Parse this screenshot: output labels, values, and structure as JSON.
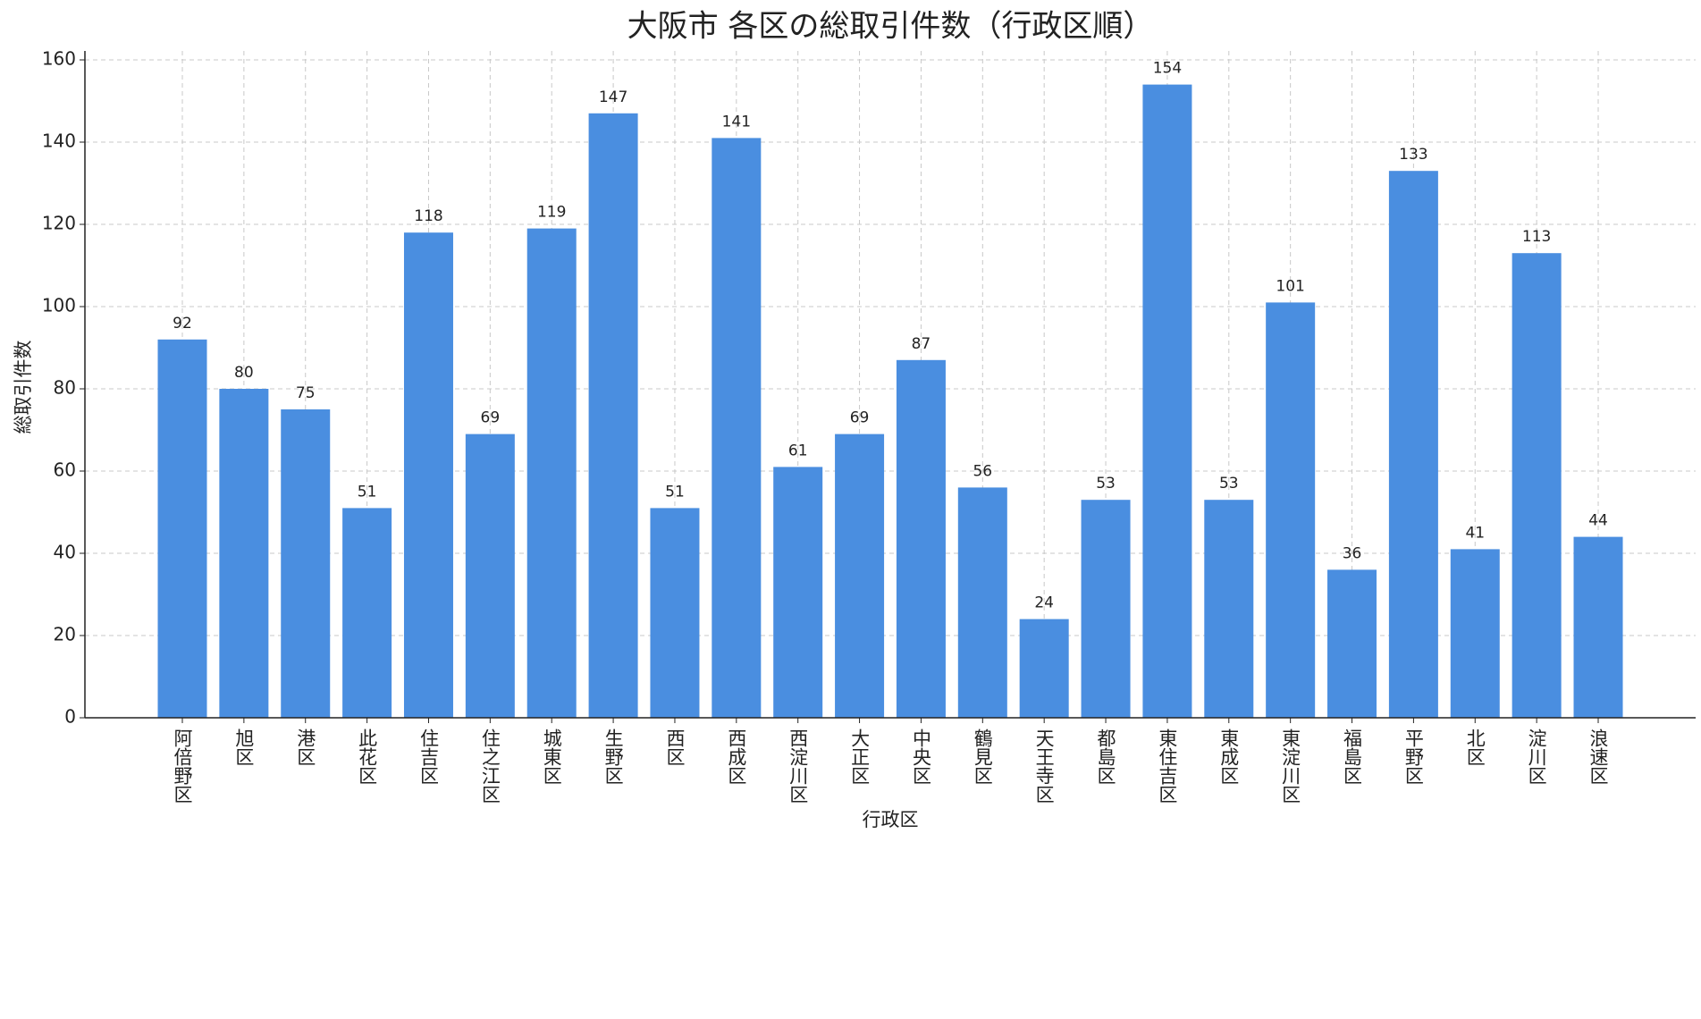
{
  "chart_data": {
    "type": "bar",
    "title": "大阪市 各区の総取引件数（行政区順）",
    "x_label": "行政区",
    "y_label": "総取引件数",
    "categories": [
      "阿倍野区",
      "旭区",
      "港区",
      "此花区",
      "住吉区",
      "住之江区",
      "城東区",
      "生野区",
      "西区",
      "西成区",
      "西淀川区",
      "大正区",
      "中央区",
      "鶴見区",
      "天王寺区",
      "都島区",
      "東住吉区",
      "東成区",
      "東淀川区",
      "福島区",
      "平野区",
      "北区",
      "淀川区",
      "浪速区"
    ],
    "values": [
      92,
      80,
      75,
      51,
      118,
      69,
      119,
      147,
      51,
      141,
      61,
      69,
      87,
      56,
      24,
      53,
      154,
      53,
      101,
      36,
      133,
      41,
      113,
      44
    ],
    "color": "#4a8ee0",
    "ylim": [
      0,
      160
    ],
    "yticks": [
      0,
      20,
      40,
      60,
      80,
      100,
      120,
      140,
      160
    ],
    "grid": true
  }
}
